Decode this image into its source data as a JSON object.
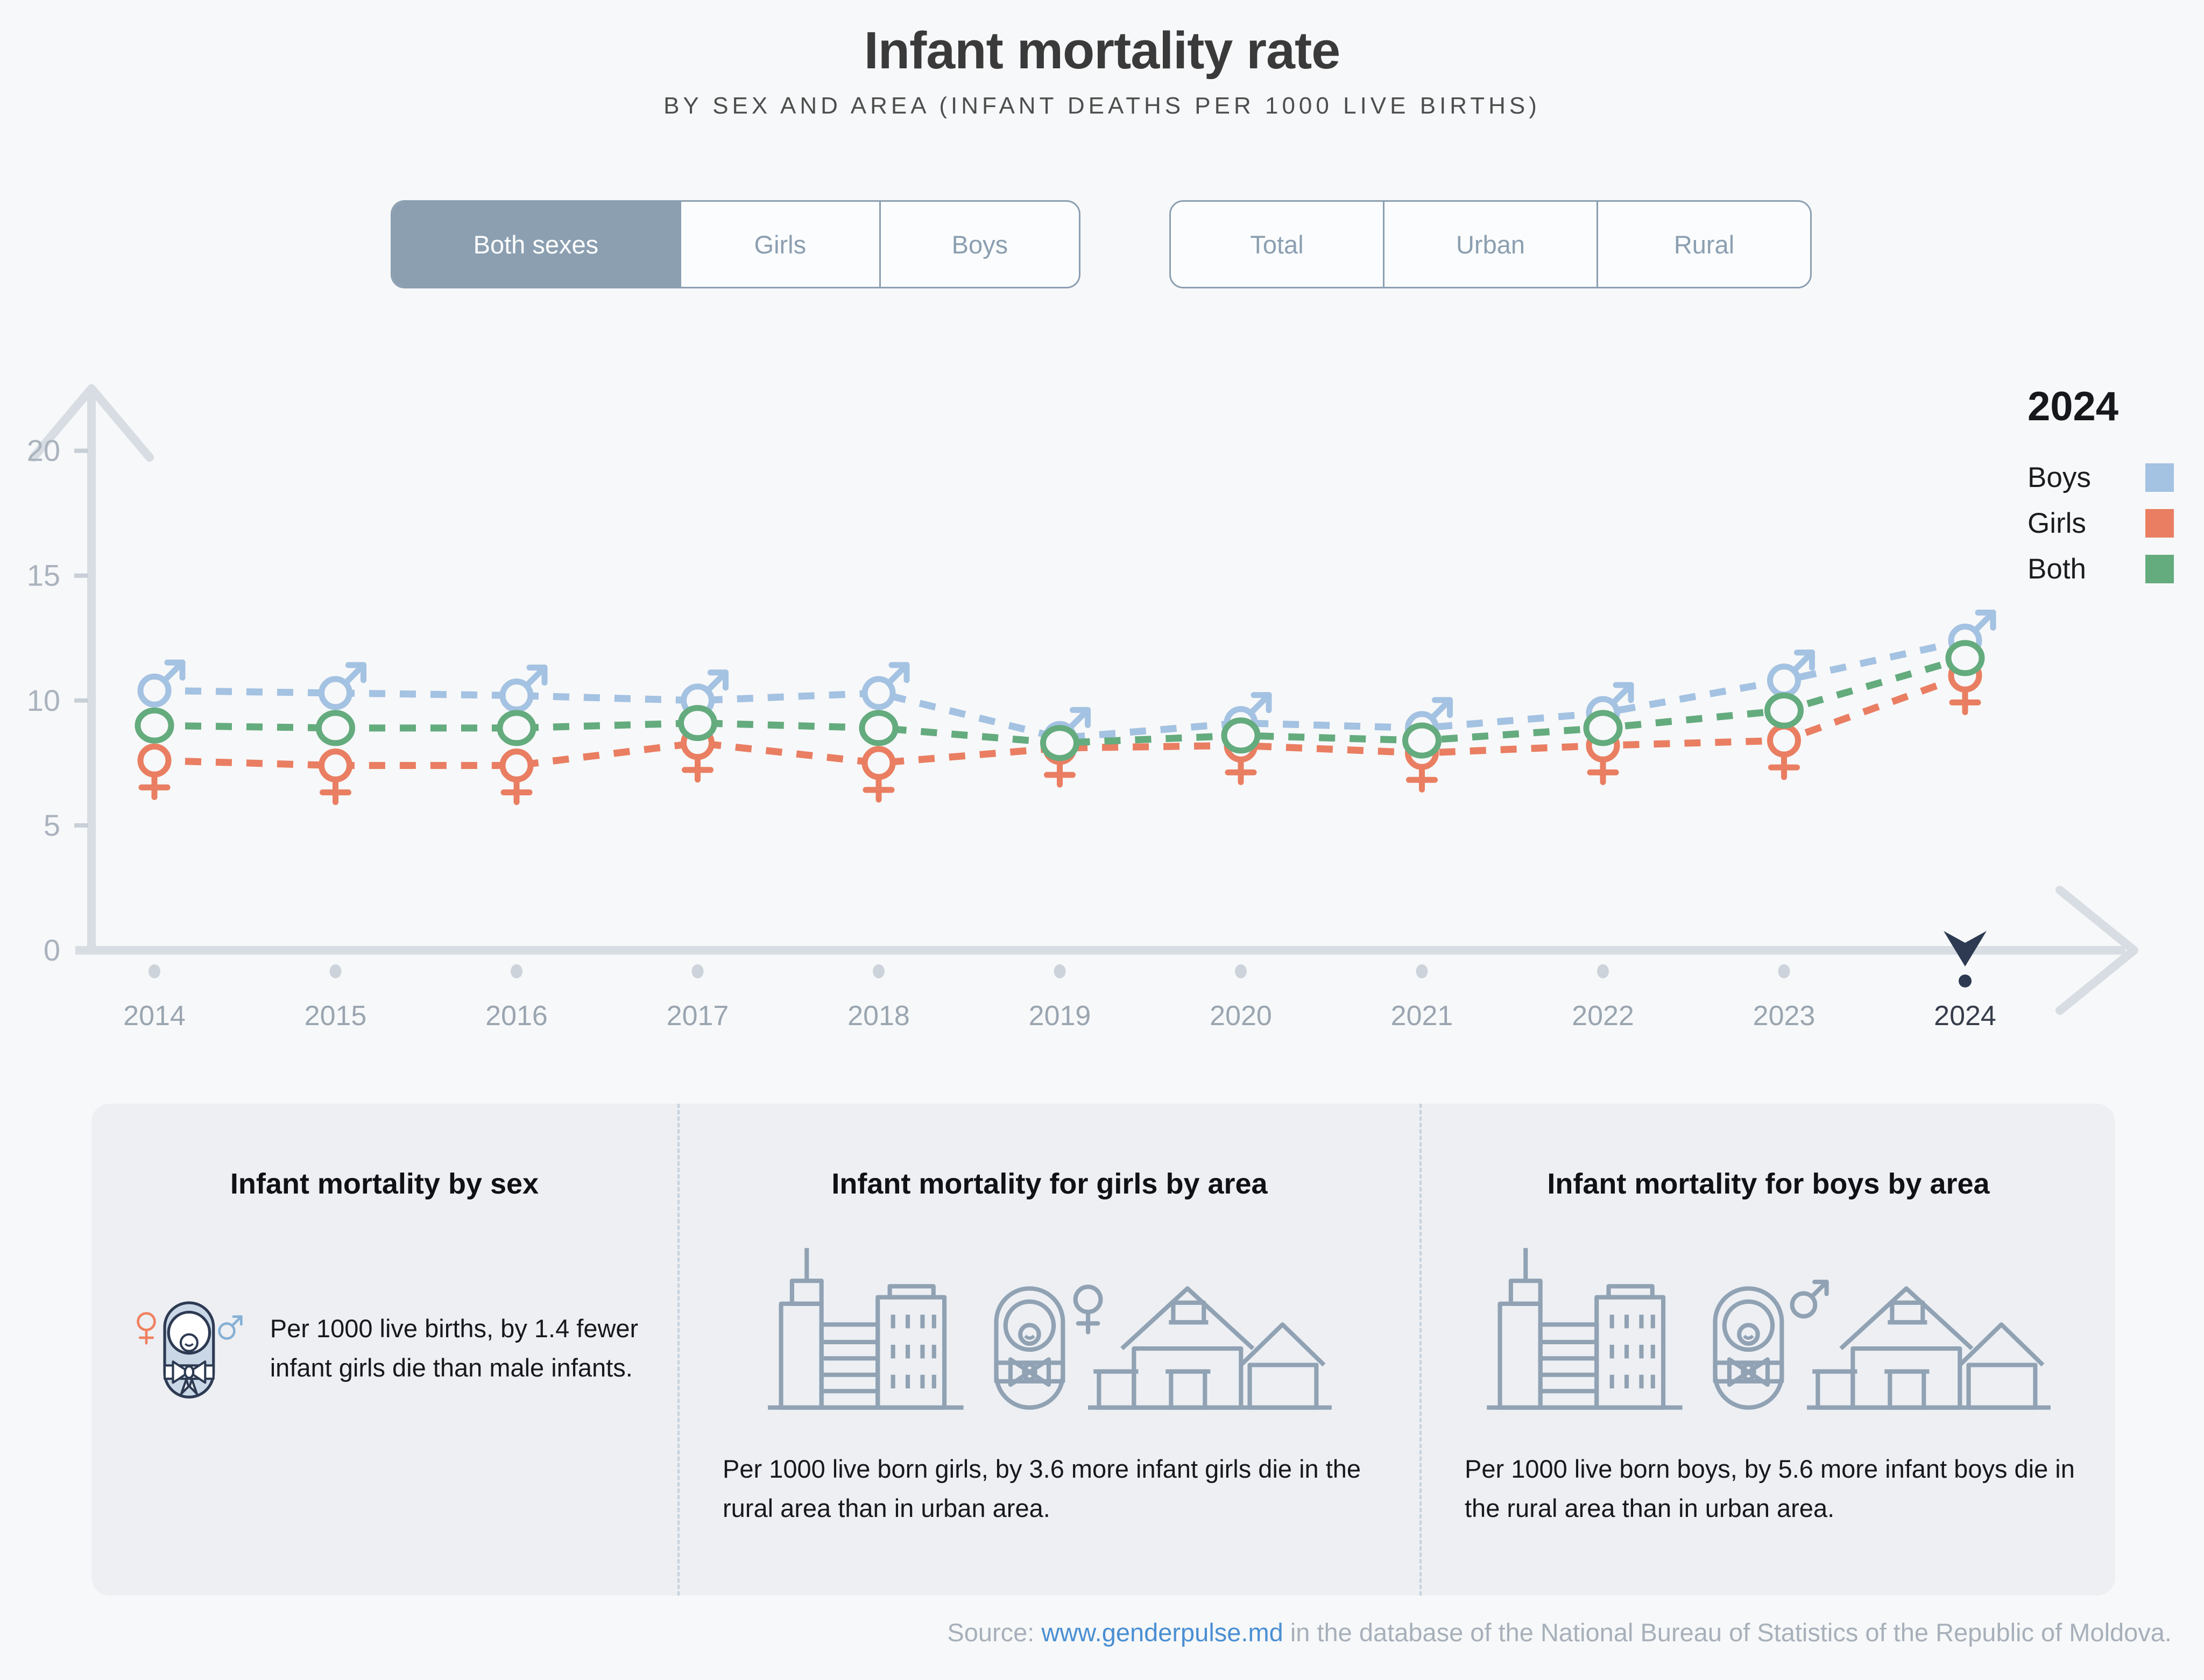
{
  "page": {
    "title": "Infant mortality rate",
    "subtitle": "BY SEX AND AREA (INFANT DEATHS PER 1000 LIVE BIRTHS)"
  },
  "filters": {
    "sex": {
      "options": [
        "Both sexes",
        "Girls",
        "Boys"
      ],
      "selected": "Both sexes"
    },
    "area": {
      "options": [
        "Total",
        "Urban",
        "Rural"
      ],
      "selected": ""
    }
  },
  "legend": {
    "year": "2024",
    "items": [
      {
        "label": "Boys",
        "color": "#a4c2e2"
      },
      {
        "label": "Girls",
        "color": "#e97e62"
      },
      {
        "label": "Both",
        "color": "#64ab7e"
      }
    ]
  },
  "chart_data": {
    "type": "line",
    "title": "Infant mortality rate by sex and area (infant deaths per 1000 live births)",
    "x": [
      2014,
      2015,
      2016,
      2017,
      2018,
      2019,
      2020,
      2021,
      2022,
      2023,
      2024
    ],
    "series": [
      {
        "name": "Boys",
        "marker": "male",
        "color": "#a4c2e2",
        "values": [
          10.4,
          10.3,
          10.2,
          10.0,
          10.3,
          8.5,
          9.1,
          8.9,
          9.5,
          10.8,
          12.4
        ]
      },
      {
        "name": "Girls",
        "marker": "female",
        "color": "#e97e62",
        "values": [
          7.6,
          7.4,
          7.4,
          8.3,
          7.5,
          8.1,
          8.2,
          7.9,
          8.2,
          8.4,
          11.0
        ]
      },
      {
        "name": "Both",
        "marker": "circle",
        "color": "#64ab7e",
        "values": [
          9.0,
          8.9,
          8.9,
          9.1,
          8.9,
          8.3,
          8.6,
          8.4,
          8.9,
          9.6,
          11.7
        ]
      }
    ],
    "ylim": [
      0,
      20
    ],
    "yticks": [
      0,
      5,
      10,
      15,
      20
    ],
    "highlight_x": 2024,
    "grid": false,
    "legend_position": "right",
    "axis_color": "#d8dde3",
    "ytick_color": "#aab3bd",
    "xtick_color": "#9aa5b0",
    "highlight_color": "#2d3a52",
    "highlight_label_color": "#363d4b"
  },
  "cards": [
    {
      "title": "Infant mortality by sex",
      "text": "Per 1000 live births, by 1.4 fewer infant girls die than male infants."
    },
    {
      "title": "Infant mortality for girls by area",
      "text": "Per 1000 live born girls, by 3.6 more infant girls die in the rural area than in urban area."
    },
    {
      "title": "Infant mortality for boys by area",
      "text": "Per 1000 live born boys, by 5.6 more infant boys die in the rural area than in urban area."
    }
  ],
  "footer": {
    "prefix": "Source: ",
    "link": "www.genderpulse.md",
    "suffix": " in the database of the National Bureau of Statistics of the Republic of Moldova."
  }
}
